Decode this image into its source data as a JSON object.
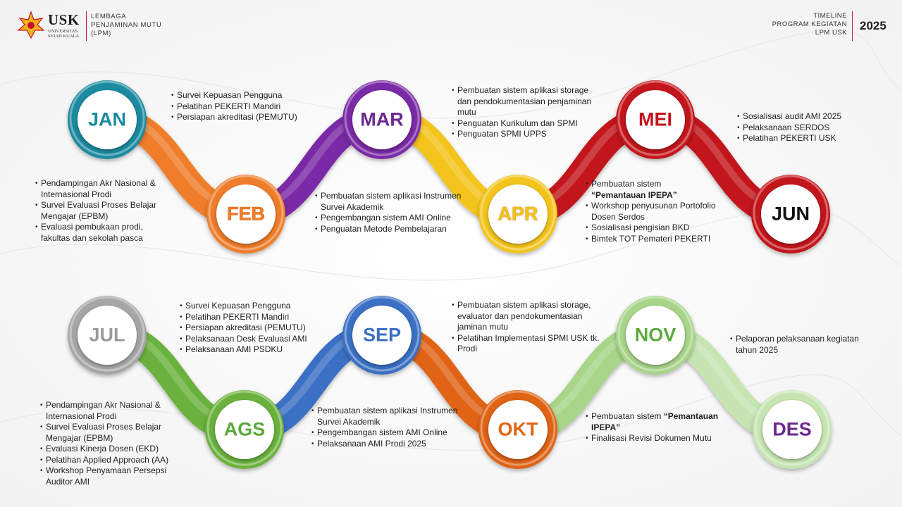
{
  "header": {
    "logo_label": "USK",
    "logo_sub_1": "UNIVERSITAS",
    "logo_sub_2": "SYIAH KUALA",
    "org_line1": "LEMBAGA",
    "org_line2": "PENJAMINAN MUTU",
    "org_line3": "(LPM)",
    "timeline_line1": "TIMELINE",
    "timeline_line2": "PROGRAM KEGIATAN",
    "timeline_line3": "LPM USK",
    "year": "2025"
  },
  "colors": {
    "jan": "#1b8aa0",
    "feb": "#ef7d2a",
    "mar": "#7a2aa6",
    "apr": "#f3c41e",
    "mei": "#c3131b",
    "jun": "#c3131b",
    "jul": "#a6a6a6",
    "ags": "#6ab23e",
    "sep": "#3a6fc4",
    "okt": "#e06412",
    "nov": "#a8d58a",
    "des": "#c6e5b2",
    "text_purple": "#6b2a8f",
    "text_green": "#5ca93a",
    "text_gray": "#9a9a9a"
  },
  "months": [
    {
      "key": "jan",
      "label": "JAN"
    },
    {
      "key": "feb",
      "label": "FEB"
    },
    {
      "key": "mar",
      "label": "MAR"
    },
    {
      "key": "apr",
      "label": "APR"
    },
    {
      "key": "mei",
      "label": "MEI"
    },
    {
      "key": "jun",
      "label": "JUN"
    },
    {
      "key": "jul",
      "label": "JUL"
    },
    {
      "key": "ags",
      "label": "AGS"
    },
    {
      "key": "sep",
      "label": "SEP"
    },
    {
      "key": "okt",
      "label": "OKT"
    },
    {
      "key": "nov",
      "label": "NOV"
    },
    {
      "key": "des",
      "label": "DES"
    }
  ],
  "activities": {
    "jan": [
      "Survei Kepuasan Pengguna",
      "Pelatihan PEKERTI Mandiri",
      "Persiapan akreditasi (PEMUTU)"
    ],
    "feb": [
      "Pendampingan Akr Nasional & Internasional Prodi",
      "Survei Evaluasi Proses Belajar Mengajar (EPBM)",
      "Evaluasi pembukaan prodi, fakultas dan sekolah pasca"
    ],
    "mar": [
      "Pembuatan sistem aplikasi storage dan pendokumentasian penjaminan mutu",
      "Penguatan Kurikulum dan SPMI",
      "Penguatan SPMI UPPS"
    ],
    "mar_lower": [
      "Pembuatan sistem aplikasi Instrumen Survei Akademik",
      "Pengembangan sistem AMI Online",
      "Penguatan Metode Pembelajaran"
    ],
    "apr": [
      "Pembuatan sistem",
      "Workshop penyusunan Portofolio Dosen Serdos",
      "Sosialisasi pengisian BKD",
      "Bimtek TOT Pemateri PEKERTI"
    ],
    "apr_bold": "“Pemantauan IPEPA”",
    "jun": [
      "Sosialisasi audit AMI 2025",
      "Pelaksanaan SERDOS",
      "Pelatihan PEKERTI USK"
    ],
    "jul": [
      "Survei Kepuasan Pengguna",
      "Pelatihan PEKERTI Mandiri",
      "Persiapan akreditasi (PEMUTU)",
      "Pelaksanaan Desk Evaluasi AMI",
      "Pelaksanaan AMI PSDKU"
    ],
    "ags": [
      "Pendampingan Akr Nasional & Internasional Prodi",
      "Survei Evaluasi Proses Belajar Mengajar (EPBM)",
      "Evaluasi Kinerja Dosen (EKD)",
      "Pelatihan Applied Approach (AA)",
      "Workshop Penyamaan Persepsi Auditor AMI"
    ],
    "sep": [
      "Pembuatan sistem aplikasi storage, evaluator dan pendokumentasian jaminan mutu",
      "Pelatihan Implementasi SPMI USK tk. Prodi"
    ],
    "sep_lower": [
      "Pembuatan sistem aplikasi Instrumen Survei Akademik",
      "Pengembangan sistem AMI Online",
      "Pelaksanaan AMI Prodi 2025"
    ],
    "okt_first": "Pembuatan sistem",
    "okt_bold": "“Pemantauan IPEPA”",
    "okt_rest": [
      "Finalisasi Revisi Dokumen Mutu"
    ],
    "des": [
      "Pelaporan pelaksanaan kegiatan tahun 2025"
    ]
  }
}
